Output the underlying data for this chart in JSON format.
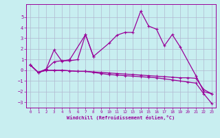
{
  "x": [
    0,
    1,
    2,
    3,
    4,
    5,
    6,
    7,
    8,
    9,
    10,
    11,
    12,
    13,
    14,
    15,
    16,
    17,
    18,
    19,
    20,
    21,
    22,
    23
  ],
  "line1": [
    0.5,
    -0.2,
    0.1,
    0.8,
    0.9,
    0.9,
    1.0,
    3.35,
    1.3,
    2.55,
    3.3,
    3.55,
    3.55,
    5.55,
    4.15,
    3.85,
    2.3,
    3.35,
    2.2,
    -0.5,
    -2.0,
    -2.2
  ],
  "line1_x": [
    0,
    1,
    2,
    3,
    4,
    5,
    6,
    7,
    8,
    10,
    11,
    12,
    13,
    14,
    15,
    16,
    17,
    18,
    19,
    21,
    22,
    23
  ],
  "line2": [
    0.5,
    -0.2,
    0.1,
    1.9,
    0.85,
    1.0,
    3.35,
    1.3
  ],
  "line2_x": [
    0,
    1,
    2,
    3,
    4,
    5,
    7,
    8
  ],
  "line3": [
    0.5,
    -0.2,
    0.0,
    0.0,
    0.0,
    -0.05,
    -0.1,
    -0.1,
    -0.15,
    -0.2,
    -0.25,
    -0.3,
    -0.35,
    -0.4,
    -0.45,
    -0.5,
    -0.55,
    -0.6,
    -0.65,
    -0.7,
    -0.7,
    -0.75,
    -1.8,
    -2.2
  ],
  "line4": [
    0.5,
    -0.2,
    0.0,
    0.0,
    0.0,
    -0.05,
    -0.1,
    -0.1,
    -0.2,
    -0.3,
    -0.4,
    -0.45,
    -0.5,
    -0.55,
    -0.6,
    -0.65,
    -0.7,
    -0.8,
    -0.9,
    -1.0,
    -1.1,
    -1.2,
    -2.2,
    -3.1
  ],
  "bg_color": "#c8eef0",
  "grid_color": "#aaaacc",
  "line_color": "#990099",
  "xlabel": "Windchill (Refroidissement éolien,°C)",
  "ylim": [
    -3.5,
    6.2
  ],
  "xlim": [
    -0.5,
    23.5
  ],
  "yticks": [
    -3,
    -2,
    -1,
    0,
    1,
    2,
    3,
    4,
    5
  ],
  "xticks": [
    0,
    1,
    2,
    3,
    4,
    5,
    6,
    7,
    8,
    9,
    10,
    11,
    12,
    13,
    14,
    15,
    16,
    17,
    18,
    19,
    20,
    21,
    22,
    23
  ]
}
